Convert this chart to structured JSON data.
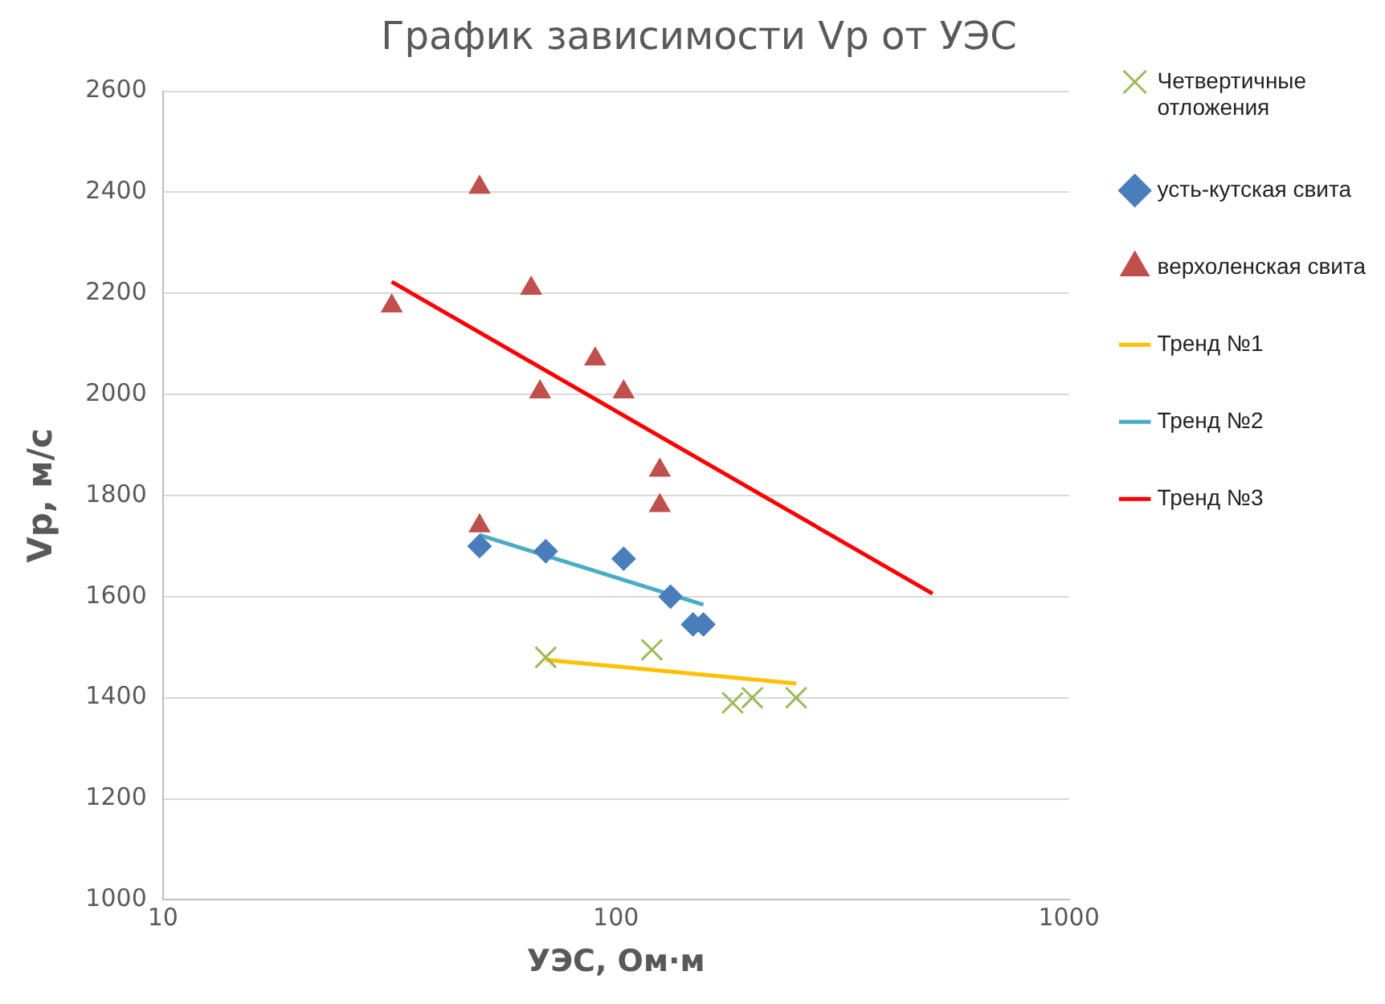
{
  "chart_data": {
    "type": "scatter",
    "title": "График зависимости Vp от УЭС",
    "xlabel": "УЭС, Ом·м",
    "ylabel": "Vp, м/с",
    "log": "x",
    "xlim": [
      10,
      1000
    ],
    "xticks": [
      10,
      100,
      1000
    ],
    "ylim": [
      1000,
      2600
    ],
    "yticks": [
      1000,
      1200,
      1400,
      1600,
      1800,
      2000,
      2200,
      2400,
      2600
    ],
    "grid": "y",
    "legend": "right",
    "series": [
      {
        "name": "Четвертичные отложения",
        "color": "#9bbb59",
        "marker": "cross",
        "x": [
          70,
          120,
          181,
          200,
          250
        ],
        "values": [
          1480,
          1495,
          1390,
          1400,
          1400
        ]
      },
      {
        "name": "усть-кутская свита",
        "color": "#4a7ebb",
        "marker": "diamond",
        "x": [
          50,
          70,
          104,
          132,
          148,
          156
        ],
        "values": [
          1700,
          1690,
          1675,
          1600,
          1545,
          1545
        ]
      },
      {
        "name": "верхоленская свита",
        "color": "#c0504d",
        "marker": "triangle",
        "x": [
          50,
          32,
          65,
          90,
          68,
          104,
          125,
          125,
          50
        ],
        "values": [
          2410,
          2175,
          2210,
          2070,
          2005,
          2005,
          1850,
          1780,
          1740
        ]
      },
      {
        "name": "Тренд №1",
        "type": "line",
        "color": "#ffc000",
        "marker": "none",
        "x": [
          70,
          250
        ],
        "values": [
          1475,
          1428
        ]
      },
      {
        "name": "Тренд №2",
        "type": "line",
        "color": "#4bacc6",
        "marker": "none",
        "x": [
          50,
          156
        ],
        "values": [
          1722,
          1584
        ]
      },
      {
        "name": "Тренд №3",
        "type": "line",
        "color": "#ff0000",
        "marker": "none",
        "x": [
          32,
          500
        ],
        "values": [
          2223,
          1606
        ]
      }
    ]
  }
}
